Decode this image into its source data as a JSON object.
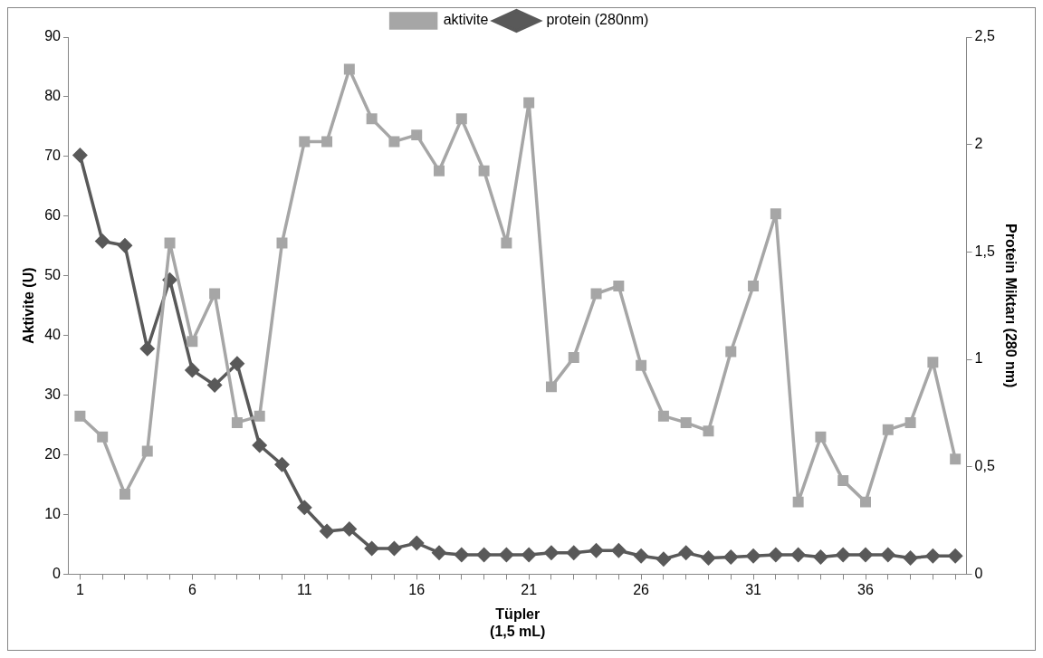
{
  "chart_data": {
    "type": "line",
    "xlabel": "Tüpler\n(1,5 mL)",
    "ylabel": "Aktivite (U)",
    "y2label": "Protein Miktarı (280 nm)",
    "categories": [
      "1",
      null,
      null,
      null,
      null,
      "6",
      null,
      null,
      null,
      null,
      "11",
      null,
      null,
      null,
      null,
      "16",
      null,
      null,
      null,
      null,
      "21",
      null,
      null,
      null,
      null,
      "26",
      null,
      null,
      null,
      null,
      "31",
      null,
      null,
      null,
      null,
      "36",
      null,
      null,
      null,
      null
    ],
    "series": [
      {
        "name": "aktivite",
        "color": "#a6a6a6",
        "marker": "square",
        "values": [
          26.5,
          23,
          13.4,
          20.6,
          55.5,
          39,
          47,
          25.4,
          26.5,
          55.5,
          72.5,
          72.5,
          84.6,
          76.3,
          72.5,
          73.6,
          67.6,
          76.3,
          67.6,
          55.5,
          79,
          31.4,
          36.3,
          47,
          48.3,
          35,
          26.5,
          25.4,
          24,
          37.3,
          48.3,
          60.4,
          12.1,
          23,
          15.7,
          12.1,
          24.2,
          25.4,
          35.5,
          19.3
        ]
      },
      {
        "name": "protein (280nm)",
        "color": "#595959",
        "marker": "diamond",
        "axis": "y2",
        "values": [
          1.95,
          1.55,
          1.53,
          1.05,
          1.37,
          0.95,
          0.88,
          0.98,
          0.6,
          0.51,
          0.31,
          0.2,
          0.21,
          0.12,
          0.12,
          0.145,
          0.1,
          0.09,
          0.09,
          0.09,
          0.09,
          0.1,
          0.1,
          0.11,
          0.11,
          0.085,
          0.07,
          0.1,
          0.075,
          0.08,
          0.085,
          0.09,
          0.09,
          0.08,
          0.09,
          0.09,
          0.09,
          0.075,
          0.085,
          0.085
        ]
      }
    ],
    "ylim": [
      0,
      90
    ],
    "yticks": [
      0,
      10,
      20,
      30,
      40,
      50,
      60,
      70,
      80,
      90
    ],
    "y2lim": [
      0,
      2.5
    ],
    "y2ticks": [
      0,
      {
        "value": 0.5,
        "label": "0,5"
      },
      1,
      {
        "value": 1.5,
        "label": "1,5"
      },
      2,
      {
        "value": 2.5,
        "label": "2,5"
      }
    ],
    "grid": false,
    "legend": "top",
    "line_style": "solid"
  }
}
